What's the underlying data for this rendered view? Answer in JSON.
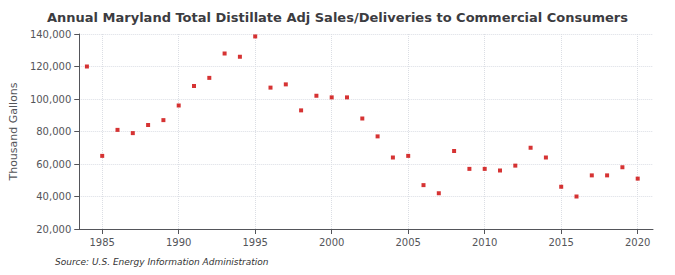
{
  "chart_data": {
    "type": "scatter",
    "title": "Annual Maryland Total Distillate Adj Sales/Deliveries to Commercial Consumers",
    "ylabel": "Thousand Gallons",
    "source": "Source: U.S. Energy Information Administration",
    "x": [
      1984,
      1985,
      1986,
      1987,
      1988,
      1989,
      1990,
      1991,
      1992,
      1993,
      1994,
      1995,
      1996,
      1997,
      1998,
      1999,
      2000,
      2001,
      2002,
      2003,
      2004,
      2005,
      2006,
      2007,
      2008,
      2009,
      2010,
      2011,
      2012,
      2013,
      2014,
      2015,
      2016,
      2017,
      2018,
      2019,
      2020
    ],
    "values": [
      120000,
      65000,
      81000,
      79000,
      84000,
      87000,
      96000,
      108000,
      113000,
      128000,
      126000,
      138500,
      107000,
      109000,
      93000,
      102000,
      101000,
      101000,
      88000,
      77000,
      64000,
      65000,
      47000,
      42000,
      68000,
      57000,
      57000,
      56000,
      59000,
      70000,
      64000,
      46000,
      40000,
      53000,
      53000,
      58000,
      51000
    ],
    "color": "#cc0000",
    "marker": "square",
    "xlim": [
      1983.5,
      2021
    ],
    "xticks": [
      1985,
      1990,
      1995,
      2000,
      2005,
      2010,
      2015,
      2020
    ],
    "ylim": [
      20000,
      140000
    ],
    "yticks": [
      {
        "value": 20000,
        "label": "20,000"
      },
      {
        "value": 40000,
        "label": "40,000"
      },
      {
        "value": 60000,
        "label": "60,000"
      },
      {
        "value": 80000,
        "label": "80,000"
      },
      {
        "value": 100000,
        "label": "100,000"
      },
      {
        "value": 120000,
        "label": "120,000"
      },
      {
        "value": 140000,
        "label": "140,000"
      }
    ],
    "grid": true
  }
}
